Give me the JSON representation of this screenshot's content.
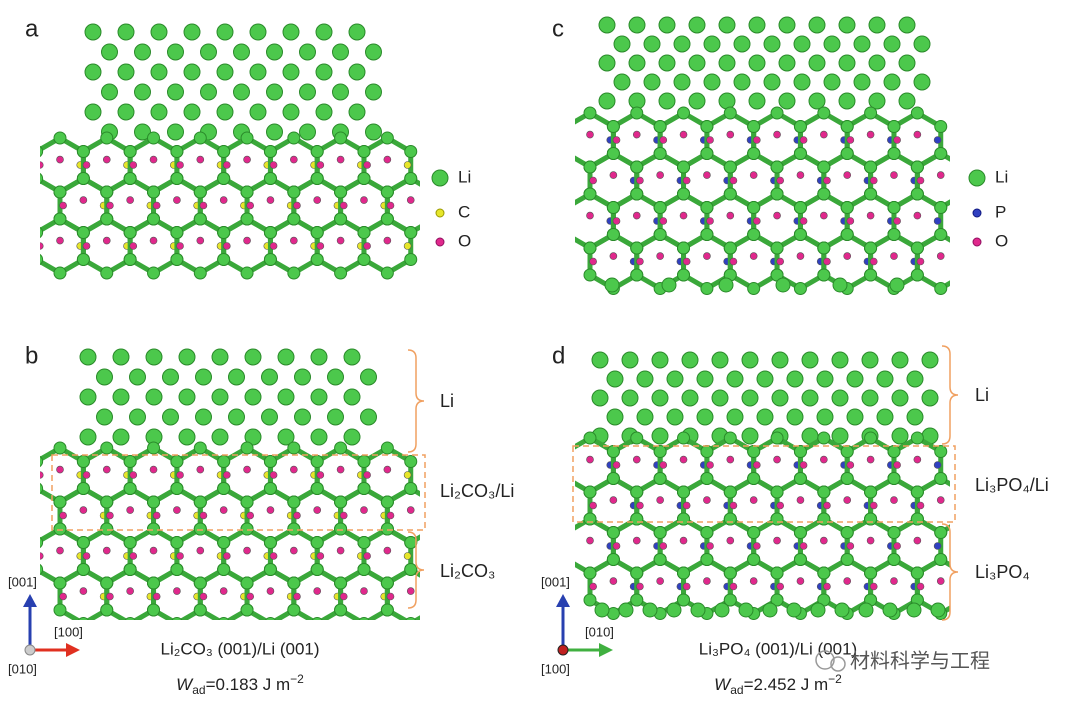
{
  "panels": [
    {
      "label": "a",
      "legend": [
        "Li",
        "C",
        "O"
      ]
    },
    {
      "label": "b",
      "regions": [
        "Li",
        "Li₂CO₃/Li",
        "Li₂CO₃"
      ],
      "axes": [
        "[001]",
        "[100]",
        "[010]"
      ],
      "caption": "Li₂CO₃ (001)/Li (001)",
      "work": {
        "symbol": "W",
        "subscript": "ad",
        "value": "=0.183 J m",
        "superscript": "−2"
      }
    },
    {
      "label": "c",
      "legend": [
        "Li",
        "P",
        "O"
      ]
    },
    {
      "label": "d",
      "regions": [
        "Li",
        "Li₃PO₄/Li",
        "Li₃PO₄"
      ],
      "axes": [
        "[001]",
        "[010]",
        "[100]"
      ],
      "caption": "Li₃PO₄ (001)/Li (001)",
      "work": {
        "symbol": "W",
        "subscript": "ad",
        "value": "=2.452 J m",
        "superscript": "−2"
      }
    }
  ],
  "watermark": "材料科学与工程"
}
